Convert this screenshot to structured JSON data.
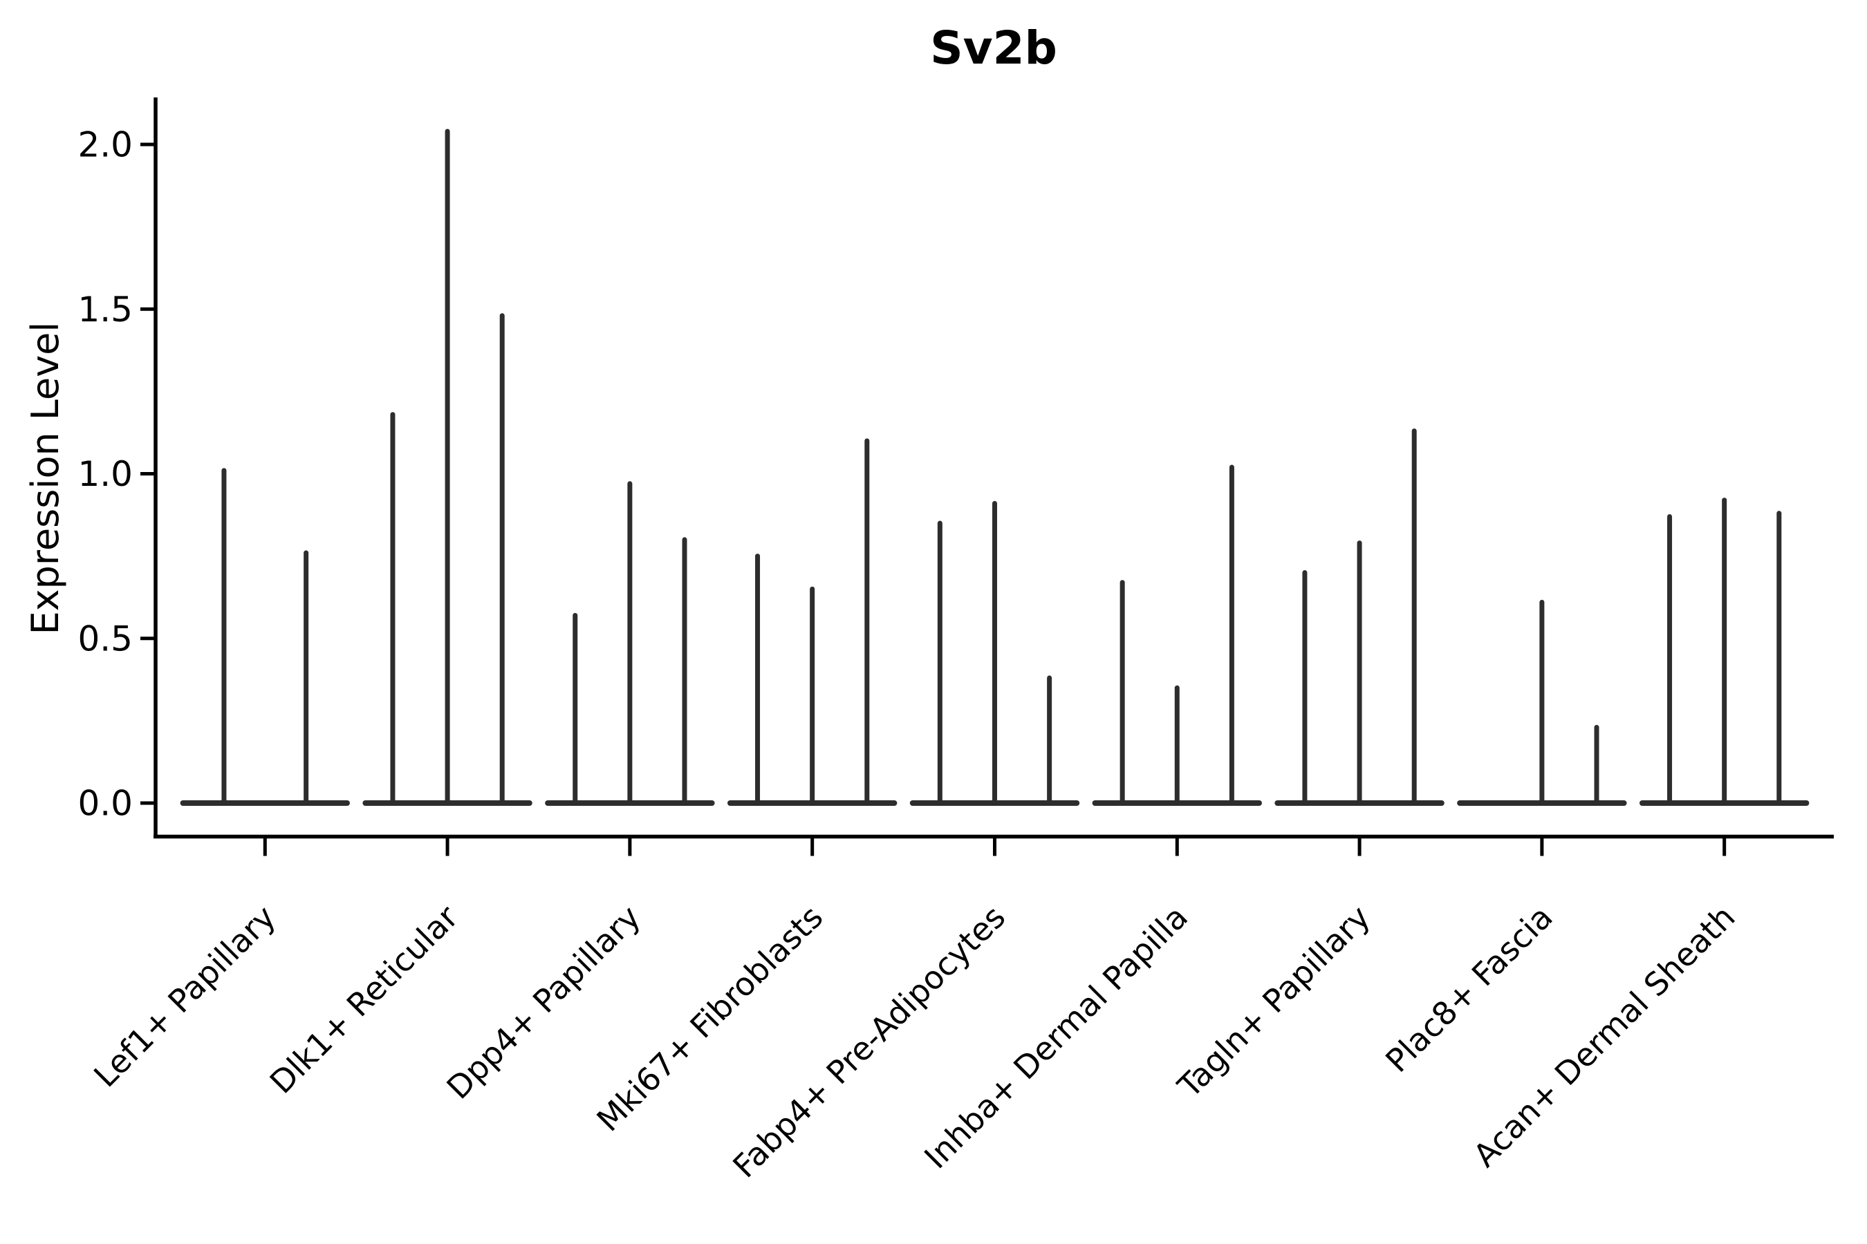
{
  "figure": {
    "background_color": "#ffffff",
    "axis_color": "#000000",
    "violin_color": "#2d2d2d"
  },
  "chart_data": {
    "type": "violin",
    "title": "Sv2b",
    "xlabel": "",
    "ylabel": "Expression Level",
    "ylim": [
      -0.1,
      2.14
    ],
    "grid": false,
    "legend": null,
    "yticks": [
      {
        "value": 0.0,
        "label": "0.0"
      },
      {
        "value": 0.5,
        "label": "0.5"
      },
      {
        "value": 1.0,
        "label": "1.0"
      },
      {
        "value": 1.5,
        "label": "1.5"
      },
      {
        "value": 2.0,
        "label": "2.0"
      }
    ],
    "x_tick_rotation": 45,
    "categories": [
      {
        "label": "Lef1+ Papillary",
        "violin_max_values": [
          1.01,
          0.76
        ]
      },
      {
        "label": "Dlk1+ Reticular",
        "violin_max_values": [
          1.18,
          2.04,
          1.48
        ]
      },
      {
        "label": "Dpp4+ Papillary",
        "violin_max_values": [
          0.57,
          0.97,
          0.8
        ]
      },
      {
        "label": "Mki67+ Fibroblasts",
        "violin_max_values": [
          0.75,
          0.65,
          1.1
        ]
      },
      {
        "label": "Fabp4+ Pre-Adipocytes",
        "violin_max_values": [
          0.85,
          0.91,
          0.38
        ]
      },
      {
        "label": "Inhba+ Dermal Papilla",
        "violin_max_values": [
          0.67,
          0.35,
          1.02
        ]
      },
      {
        "label": "Tagln+ Papillary",
        "violin_max_values": [
          0.7,
          0.79,
          1.13
        ]
      },
      {
        "label": "Plac8+ Fascia",
        "violin_max_values": [
          0.0,
          0.61,
          0.23
        ]
      },
      {
        "label": "Acan+ Dermal Sheath",
        "violin_max_values": [
          0.87,
          0.92,
          0.88
        ]
      }
    ]
  }
}
